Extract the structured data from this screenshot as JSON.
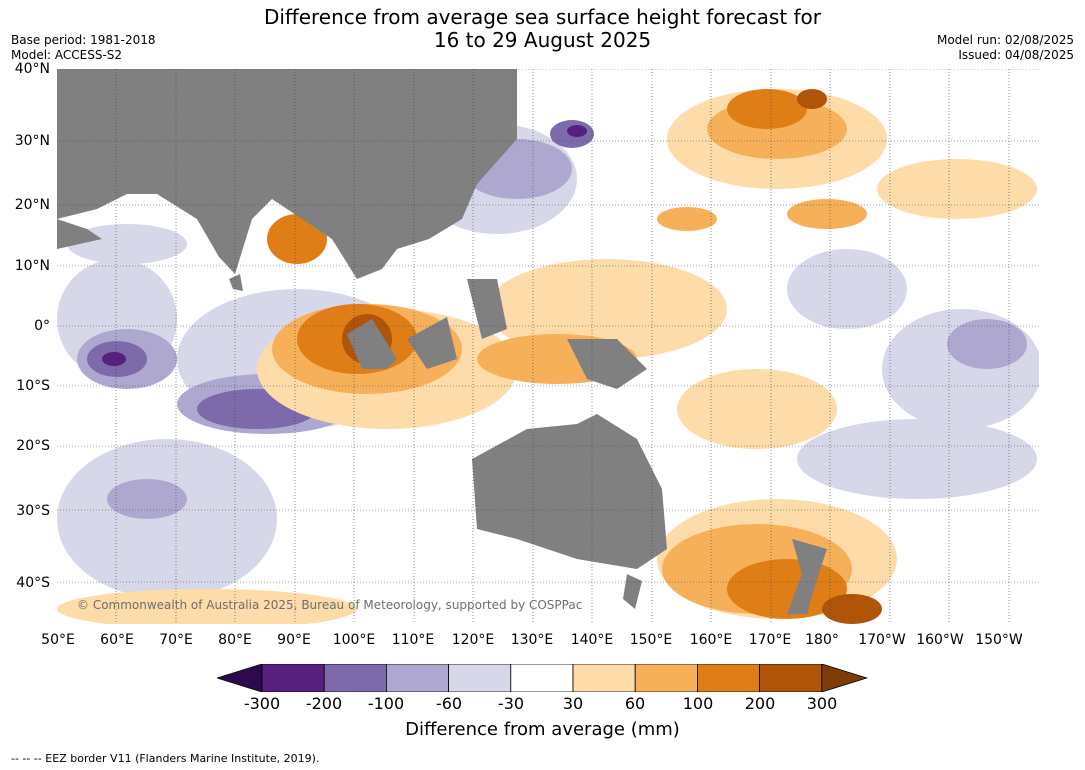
{
  "header": {
    "title_line1": "Difference from average sea surface height forecast for",
    "title_line2": "16 to 29 August 2025",
    "base_period": "Base period: 1981-2018",
    "model": "Model: ACCESS-S2",
    "model_run": "Model run: 02/08/2025",
    "issued": "Issued: 04/08/2025"
  },
  "map": {
    "land_color": "#808080",
    "copyright": "© Commonwealth of Australia 2025, Bureau of Meteorology, supported by COSPPac",
    "lat_labels": [
      "40°N",
      "30°N",
      "20°N",
      "10°N",
      "0°",
      "10°S",
      "20°S",
      "30°S",
      "40°S"
    ],
    "lon_labels": [
      "50°E",
      "60°E",
      "70°E",
      "80°E",
      "90°E",
      "100°E",
      "110°E",
      "120°E",
      "130°E",
      "140°E",
      "150°E",
      "160°E",
      "170°E",
      "180°",
      "170°W",
      "160°W",
      "150°W"
    ]
  },
  "legend": {
    "title": "Difference from average (mm)",
    "tick_labels": [
      "-300",
      "-200",
      "-100",
      "-60",
      "-30",
      "30",
      "60",
      "100",
      "200",
      "300"
    ],
    "colors": [
      "#2d0a4d",
      "#56207f",
      "#7d6aaa",
      "#aea8d0",
      "#d7d7ea",
      "#ffffff",
      "#fddcaa",
      "#f6b05a",
      "#df7e16",
      "#b0540a",
      "#7e3a08"
    ]
  },
  "footer": {
    "eez_note": "--  --  -- EEZ border V11 (Flanders Marine Institute, 2019)."
  }
}
